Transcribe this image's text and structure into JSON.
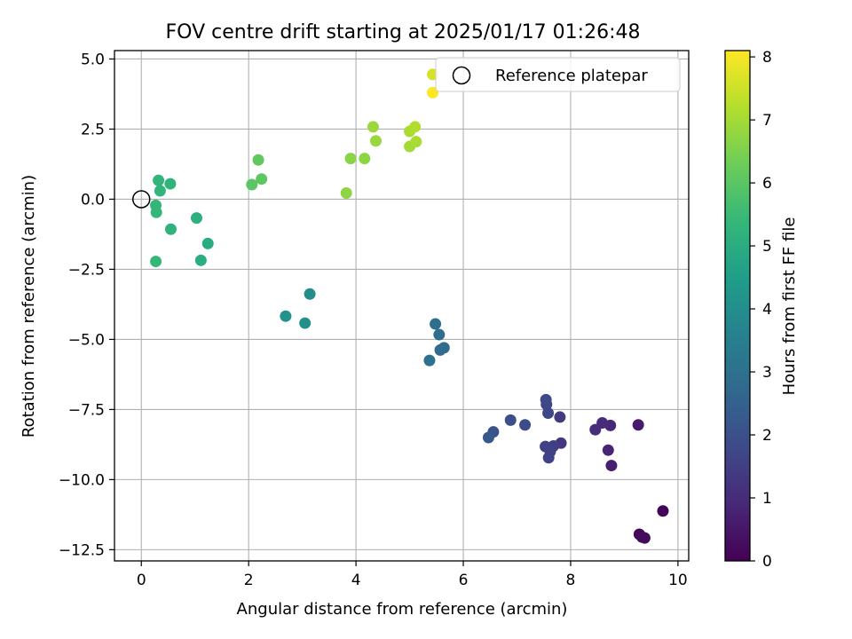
{
  "chart_data": {
    "type": "scatter",
    "title": "FOV centre drift starting at 2025/01/17 01:26:48",
    "xlabel": "Angular distance from reference (arcmin)",
    "ylabel": "Rotation from reference (arcmin)",
    "xlim": [
      -0.5,
      10.2
    ],
    "ylim": [
      -12.9,
      5.3
    ],
    "xticks": [
      0,
      2,
      4,
      6,
      8,
      10
    ],
    "xtick_labels": [
      "0",
      "2",
      "4",
      "6",
      "8",
      "10"
    ],
    "yticks": [
      5.0,
      2.5,
      0.0,
      -2.5,
      -5.0,
      -7.5,
      -10.0,
      -12.5
    ],
    "ytick_labels": [
      "5.0",
      "2.5",
      "0.0",
      "−2.5",
      "−5.0",
      "−7.5",
      "−10.0",
      "−12.5"
    ],
    "grid": true,
    "legend": {
      "placement": "top-right",
      "entries": [
        "Reference platepar"
      ]
    },
    "reference_point": {
      "x": 0,
      "y": 0
    },
    "colorbar": {
      "label": "Hours from first FF file",
      "range": [
        0,
        8.1
      ],
      "ticks": [
        0,
        1,
        2,
        3,
        4,
        5,
        6,
        7,
        8
      ],
      "tick_labels": [
        "0",
        "1",
        "2",
        "3",
        "4",
        "5",
        "6",
        "7",
        "8"
      ],
      "colormap": "viridis"
    },
    "points": [
      {
        "x": 9.72,
        "y": -11.12,
        "c": 0.1
      },
      {
        "x": 9.28,
        "y": -11.95,
        "c": 0.15
      },
      {
        "x": 9.33,
        "y": -12.05,
        "c": 0.2
      },
      {
        "x": 9.38,
        "y": -12.08,
        "c": 0.25
      },
      {
        "x": 9.26,
        "y": -8.05,
        "c": 0.6
      },
      {
        "x": 8.76,
        "y": -9.5,
        "c": 0.7
      },
      {
        "x": 8.7,
        "y": -8.95,
        "c": 0.8
      },
      {
        "x": 8.74,
        "y": -8.07,
        "c": 0.9
      },
      {
        "x": 8.59,
        "y": -7.98,
        "c": 1.0
      },
      {
        "x": 8.46,
        "y": -8.22,
        "c": 1.05
      },
      {
        "x": 7.82,
        "y": -8.7,
        "c": 1.3
      },
      {
        "x": 7.8,
        "y": -7.77,
        "c": 1.4
      },
      {
        "x": 7.68,
        "y": -8.8,
        "c": 1.5
      },
      {
        "x": 7.62,
        "y": -9.0,
        "c": 1.55
      },
      {
        "x": 7.59,
        "y": -9.22,
        "c": 1.6
      },
      {
        "x": 7.53,
        "y": -8.82,
        "c": 1.6
      },
      {
        "x": 7.58,
        "y": -7.63,
        "c": 1.7
      },
      {
        "x": 7.55,
        "y": -7.32,
        "c": 1.7
      },
      {
        "x": 7.54,
        "y": -7.15,
        "c": 1.75
      },
      {
        "x": 7.15,
        "y": -8.05,
        "c": 1.85
      },
      {
        "x": 6.88,
        "y": -7.88,
        "c": 1.95
      },
      {
        "x": 6.56,
        "y": -8.3,
        "c": 2.1
      },
      {
        "x": 6.47,
        "y": -8.5,
        "c": 2.2
      },
      {
        "x": 5.64,
        "y": -5.3,
        "c": 2.8
      },
      {
        "x": 5.57,
        "y": -5.38,
        "c": 2.85
      },
      {
        "x": 5.55,
        "y": -4.83,
        "c": 2.9
      },
      {
        "x": 5.48,
        "y": -4.45,
        "c": 2.95
      },
      {
        "x": 5.37,
        "y": -5.75,
        "c": 3.0
      },
      {
        "x": 3.14,
        "y": -3.38,
        "c": 4.0
      },
      {
        "x": 3.05,
        "y": -4.42,
        "c": 4.05
      },
      {
        "x": 2.69,
        "y": -4.17,
        "c": 4.1
      },
      {
        "x": 1.24,
        "y": -1.58,
        "c": 5.0
      },
      {
        "x": 1.11,
        "y": -2.18,
        "c": 5.05
      },
      {
        "x": 1.03,
        "y": -0.67,
        "c": 5.1
      },
      {
        "x": 0.55,
        "y": -1.07,
        "c": 5.2
      },
      {
        "x": 0.54,
        "y": 0.55,
        "c": 5.25
      },
      {
        "x": 0.35,
        "y": 0.3,
        "c": 5.3
      },
      {
        "x": 0.32,
        "y": 0.67,
        "c": 5.3
      },
      {
        "x": 0.28,
        "y": -0.47,
        "c": 5.35
      },
      {
        "x": 0.27,
        "y": -0.22,
        "c": 5.35
      },
      {
        "x": 0.27,
        "y": -2.22,
        "c": 5.4
      },
      {
        "x": 2.06,
        "y": 0.52,
        "c": 6.0
      },
      {
        "x": 2.24,
        "y": 0.72,
        "c": 6.05
      },
      {
        "x": 2.18,
        "y": 1.4,
        "c": 6.1
      },
      {
        "x": 3.82,
        "y": 0.22,
        "c": 6.7
      },
      {
        "x": 3.9,
        "y": 1.45,
        "c": 6.65
      },
      {
        "x": 4.16,
        "y": 1.45,
        "c": 6.7
      },
      {
        "x": 4.37,
        "y": 2.08,
        "c": 6.85
      },
      {
        "x": 4.32,
        "y": 2.58,
        "c": 6.9
      },
      {
        "x": 5.0,
        "y": 1.88,
        "c": 7.0
      },
      {
        "x": 5.12,
        "y": 2.05,
        "c": 7.05
      },
      {
        "x": 5.0,
        "y": 2.42,
        "c": 7.1
      },
      {
        "x": 5.1,
        "y": 2.58,
        "c": 7.15
      },
      {
        "x": 5.43,
        "y": 4.45,
        "c": 7.6
      },
      {
        "x": 5.43,
        "y": 3.8,
        "c": 8.1
      }
    ]
  }
}
